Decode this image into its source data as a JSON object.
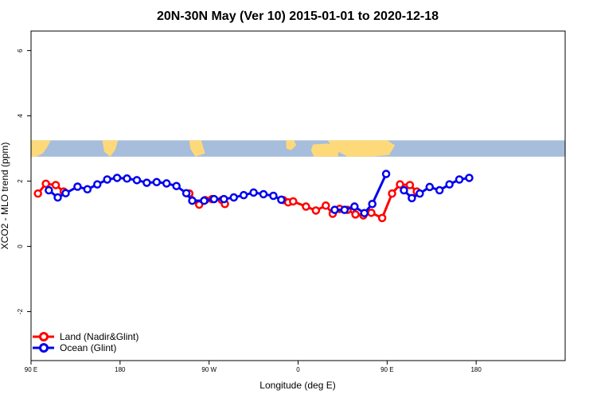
{
  "chart_data": {
    "type": "line",
    "title": "20N-30N May (Ver 10)   2015-01-01 to 2020-12-18",
    "xlabel": "Longitude (deg E)",
    "ylabel": "XCO2 - MLO trend (ppm)",
    "xlim": [
      0,
      540
    ],
    "ylim": [
      -3.5,
      6.6
    ],
    "x_ticks": [
      {
        "value": 0,
        "label": "90 E"
      },
      {
        "value": 90,
        "label": "180"
      },
      {
        "value": 180,
        "label": "90 W"
      },
      {
        "value": 270,
        "label": "0"
      },
      {
        "value": 360,
        "label": "90 E"
      },
      {
        "value": 450,
        "label": "180"
      }
    ],
    "y_ticks": [
      {
        "value": -2,
        "label": "-2"
      },
      {
        "value": 0,
        "label": "0"
      },
      {
        "value": 2,
        "label": "2"
      },
      {
        "value": 4,
        "label": "4"
      },
      {
        "value": 6,
        "label": "6"
      }
    ],
    "map_strip": {
      "y_range": [
        2.75,
        3.25
      ],
      "ocean_color": "#a6bddb",
      "land_color": "#fdd97a"
    },
    "legend_position": "bottom-left",
    "series": [
      {
        "name": "Land (Nadir&Glint)",
        "color": "#ff0000",
        "segments": [
          [
            [
              7,
              1.62
            ],
            [
              15,
              1.92
            ],
            [
              25,
              1.88
            ],
            [
              33,
              1.68
            ]
          ],
          [
            [
              160,
              1.62
            ],
            [
              170,
              1.28
            ],
            [
              176,
              1.42
            ],
            [
              183,
              1.45
            ],
            [
              193,
              1.42
            ],
            [
              196,
              1.3
            ]
          ],
          [
            [
              255,
              1.42
            ],
            [
              260,
              1.35
            ],
            [
              265,
              1.38
            ],
            [
              278,
              1.22
            ],
            [
              288,
              1.1
            ],
            [
              298,
              1.25
            ],
            [
              305,
              1.0
            ],
            [
              312,
              1.15
            ],
            [
              320,
              1.12
            ],
            [
              328,
              0.98
            ],
            [
              336,
              0.95
            ],
            [
              344,
              1.03
            ],
            [
              355,
              0.87
            ],
            [
              365,
              1.62
            ],
            [
              373,
              1.9
            ],
            [
              383,
              1.88
            ],
            [
              390,
              1.68
            ]
          ]
        ]
      },
      {
        "name": "Ocean (Glint)",
        "color": "#0000ee",
        "segments": [
          [
            [
              18,
              1.72
            ],
            [
              27,
              1.5
            ],
            [
              35,
              1.63
            ],
            [
              47,
              1.83
            ],
            [
              57,
              1.75
            ],
            [
              67,
              1.9
            ],
            [
              77,
              2.05
            ],
            [
              87,
              2.1
            ],
            [
              97,
              2.08
            ],
            [
              107,
              2.03
            ],
            [
              117,
              1.95
            ],
            [
              127,
              1.97
            ],
            [
              137,
              1.93
            ],
            [
              147,
              1.85
            ],
            [
              157,
              1.63
            ],
            [
              163,
              1.4
            ],
            [
              175,
              1.4
            ],
            [
              185,
              1.45
            ],
            [
              195,
              1.45
            ],
            [
              205,
              1.5
            ],
            [
              215,
              1.57
            ],
            [
              225,
              1.65
            ],
            [
              235,
              1.6
            ],
            [
              245,
              1.55
            ],
            [
              253,
              1.43
            ]
          ],
          [
            [
              307,
              1.12
            ],
            [
              317,
              1.12
            ],
            [
              327,
              1.22
            ],
            [
              337,
              1.02
            ],
            [
              345,
              1.3
            ],
            [
              359,
              2.22
            ]
          ],
          [
            [
              377,
              1.72
            ],
            [
              385,
              1.48
            ],
            [
              393,
              1.62
            ],
            [
              403,
              1.82
            ],
            [
              413,
              1.72
            ],
            [
              423,
              1.9
            ],
            [
              433,
              2.05
            ],
            [
              443,
              2.1
            ]
          ]
        ]
      }
    ]
  }
}
